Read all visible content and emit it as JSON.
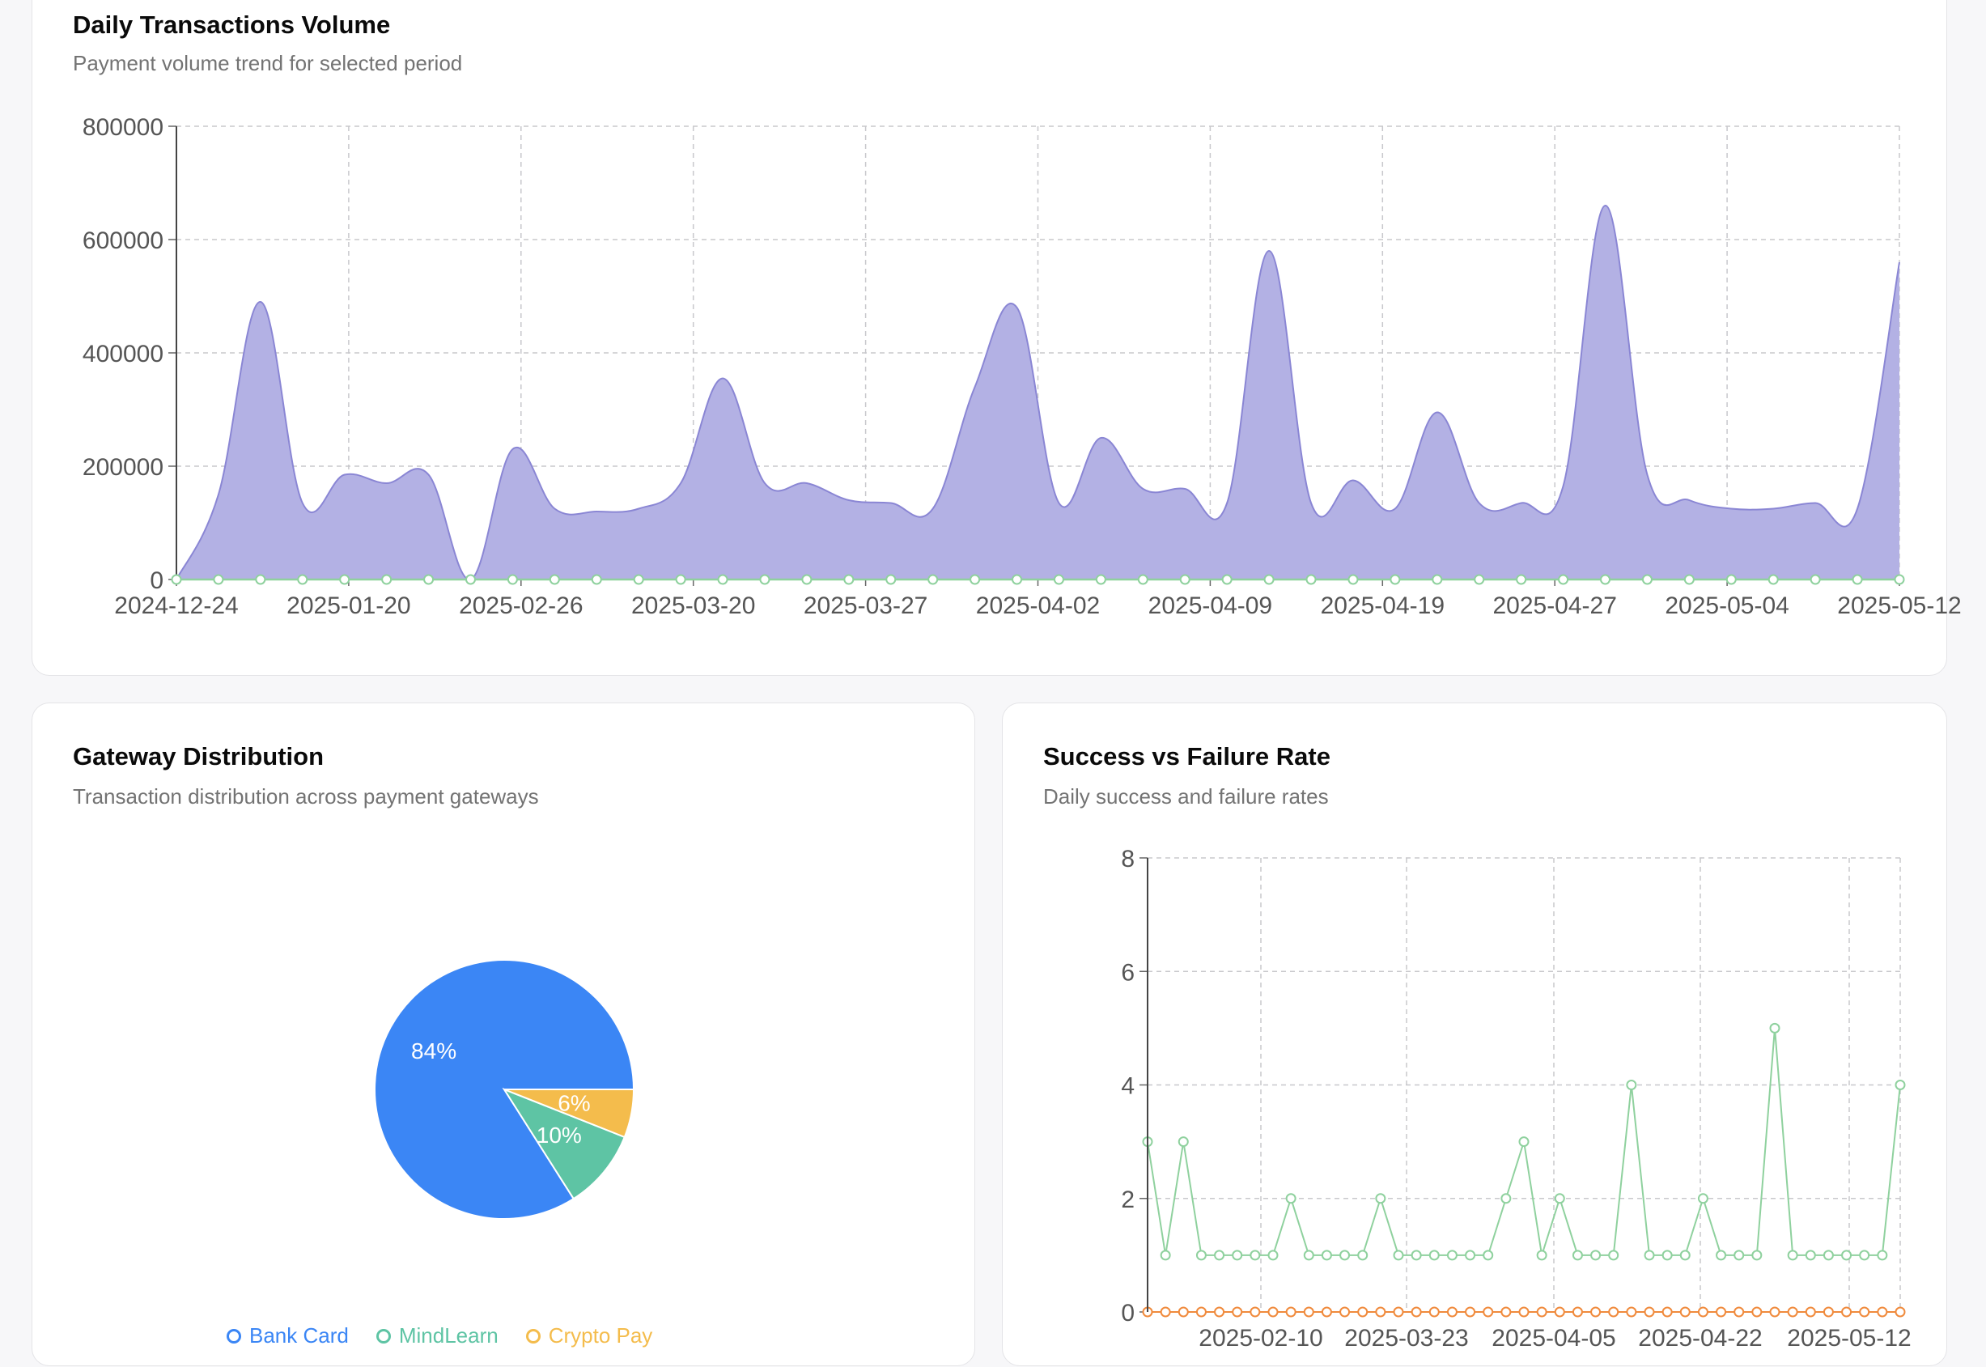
{
  "colors": {
    "volume_fill": "#b3b1e4",
    "volume_stroke": "#8a86d4",
    "volume_points": "#8fd19e",
    "grid": "#c8c8cc",
    "axis_text": "#555555",
    "success": "#8fd19e",
    "failure": "#f08a3c"
  },
  "volume_card": {
    "title": "Daily Transactions Volume",
    "subtitle": "Payment volume trend for selected period"
  },
  "gateway_card": {
    "title": "Gateway Distribution",
    "subtitle": "Transaction distribution across payment gateways",
    "legend": [
      {
        "label": "Bank Card",
        "color": "#3b86f5",
        "icon": "circle-icon"
      },
      {
        "label": "MindLearn",
        "color": "#5ec4a4",
        "icon": "circle-icon"
      },
      {
        "label": "Crypto Pay",
        "color": "#f4bc4c",
        "icon": "circle-icon"
      }
    ]
  },
  "success_card": {
    "title": "Success vs Failure Rate",
    "subtitle": "Daily success and failure rates"
  },
  "chart_data": [
    {
      "type": "area",
      "x_tick_labels": [
        "2024-12-24",
        "2025-01-20",
        "2025-02-26",
        "2025-03-20",
        "2025-03-27",
        "2025-04-02",
        "2025-04-09",
        "2025-04-19",
        "2025-04-27",
        "2025-05-04",
        "2025-05-12"
      ],
      "y_tick_labels": [
        "0",
        "200000",
        "400000",
        "600000",
        "800000"
      ],
      "ylim": [
        0,
        800000
      ],
      "grid": true,
      "series": [
        {
          "values": [
            0,
            150000,
            490000,
            135000,
            185000,
            170000,
            185000,
            0,
            230000,
            125000,
            120000,
            125000,
            170000,
            355000,
            170000,
            170000,
            140000,
            135000,
            125000,
            340000,
            480000,
            135000,
            250000,
            160000,
            160000,
            135000,
            580000,
            135000,
            175000,
            125000,
            295000,
            135000,
            135000,
            165000,
            660000,
            185000,
            140000,
            125000,
            125000,
            135000,
            125000,
            560000
          ]
        }
      ]
    },
    {
      "type": "pie",
      "series": [
        {
          "name": "Bank Card",
          "value": 84,
          "label": "84%",
          "color": "#3b86f5"
        },
        {
          "name": "MindLearn",
          "value": 10,
          "label": "10%",
          "color": "#5ec4a4"
        },
        {
          "name": "Crypto Pay",
          "value": 6,
          "label": "6%",
          "color": "#f4bc4c"
        }
      ]
    },
    {
      "type": "line",
      "x_tick_labels": [
        "2025-02-10",
        "2025-03-23",
        "2025-04-05",
        "2025-04-22",
        "2025-05-12"
      ],
      "y_tick_labels": [
        "0",
        "2",
        "4",
        "6",
        "8"
      ],
      "ylim": [
        0,
        8
      ],
      "grid": true,
      "series": [
        {
          "values": [
            3,
            1,
            3,
            1,
            1,
            1,
            1,
            1,
            2,
            1,
            1,
            1,
            1,
            2,
            1,
            1,
            1,
            1,
            1,
            1,
            2,
            3,
            1,
            2,
            1,
            1,
            1,
            4,
            1,
            1,
            1,
            2,
            1,
            1,
            1,
            5,
            1,
            1,
            1,
            1,
            1,
            1,
            4
          ],
          "color": "#8fd19e"
        },
        {
          "values": [
            0,
            0,
            0,
            0,
            0,
            0,
            0,
            0,
            0,
            0,
            0,
            0,
            0,
            0,
            0,
            0,
            0,
            0,
            0,
            0,
            0,
            0,
            0,
            0,
            0,
            0,
            0,
            0,
            0,
            0,
            0,
            0,
            0,
            0,
            0,
            0,
            0,
            0,
            0,
            0,
            0,
            0,
            0
          ],
          "color": "#f08a3c"
        }
      ]
    }
  ]
}
